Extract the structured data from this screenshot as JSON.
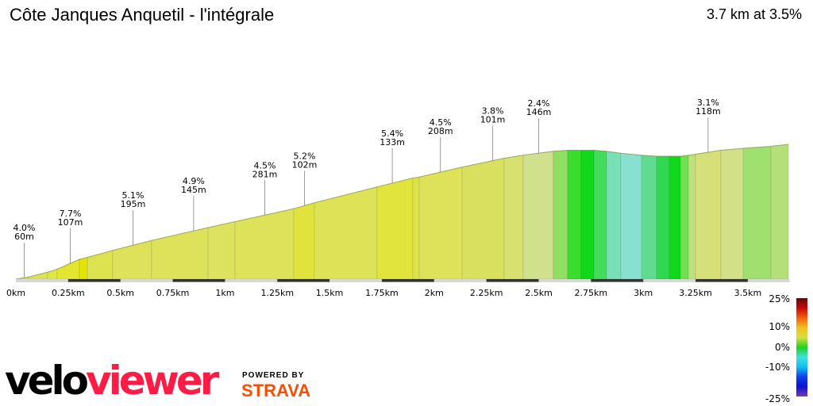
{
  "header": {
    "title": "Côte Janques Anquetil - l'intégrale",
    "summary": "3.7 km at 3.5%"
  },
  "logo": {
    "velo": "velo",
    "viewer": "viewer",
    "powered_by": "POWERED BY",
    "strava": "STRAVA"
  },
  "chart_data": {
    "type": "area",
    "title": "",
    "xlabel": "",
    "ylabel": "",
    "xlim": [
      0,
      3.7
    ],
    "x_unit": "km",
    "grid": false,
    "profile": {
      "km": [
        0,
        0.057,
        0.152,
        0.197,
        0.304,
        0.342,
        0.463,
        0.649,
        0.919,
        1.048,
        1.329,
        1.427,
        1.727,
        1.898,
        1.929,
        2.134,
        2.335,
        2.426,
        2.57,
        2.638,
        2.703,
        2.764,
        2.825,
        2.893,
        2.992,
        3.064,
        3.125,
        3.178,
        3.216,
        3.25,
        3.371,
        3.478,
        3.611,
        3.694
      ],
      "elevation_m": [
        0,
        2,
        7,
        10,
        20,
        22,
        29,
        39,
        52,
        58,
        71,
        77,
        93,
        102,
        103,
        113,
        122,
        125,
        129,
        130,
        130,
        130,
        129,
        127,
        125,
        124,
        124,
        124,
        125,
        126,
        130,
        132,
        134,
        136
      ],
      "segment_colors": [
        "#dde25a",
        "#dde258",
        "#e0e64a",
        "#e4e530",
        "#e3e400",
        "#dde24f",
        "#dde25a",
        "#dde25a",
        "#dde260",
        "#dde258",
        "#dfe33c",
        "#dde256",
        "#e0e43c",
        "#dde248",
        "#dde258",
        "#d9e060",
        "#d8e070",
        "#d0e08c",
        "#8fe062",
        "#3cdc2c",
        "#10d81a",
        "#40dc5a",
        "#78e0b4",
        "#88e0d0",
        "#60dc90",
        "#30d850",
        "#10d81a",
        "#70e050",
        "#c0e080",
        "#d6e078",
        "#d2e088",
        "#a0e070",
        "#b4e07a"
      ]
    },
    "annotations": [
      {
        "km": 0.04,
        "grade": "4.0%",
        "length": "60m"
      },
      {
        "km": 0.26,
        "grade": "7.7%",
        "length": "107m"
      },
      {
        "km": 0.56,
        "grade": "5.1%",
        "length": "195m"
      },
      {
        "km": 0.85,
        "grade": "4.9%",
        "length": "145m"
      },
      {
        "km": 1.19,
        "grade": "4.5%",
        "length": "281m"
      },
      {
        "km": 1.38,
        "grade": "5.2%",
        "length": "102m"
      },
      {
        "km": 1.8,
        "grade": "5.4%",
        "length": "133m"
      },
      {
        "km": 2.03,
        "grade": "4.5%",
        "length": "208m"
      },
      {
        "km": 2.28,
        "grade": "3.8%",
        "length": "101m"
      },
      {
        "km": 2.5,
        "grade": "2.4%",
        "length": "146m"
      },
      {
        "km": 3.31,
        "grade": "3.1%",
        "length": "118m"
      }
    ],
    "x_ticks": [
      {
        "value": 0,
        "label": "0km"
      },
      {
        "value": 0.25,
        "label": "0.25km"
      },
      {
        "value": 0.5,
        "label": "0.5km"
      },
      {
        "value": 0.75,
        "label": "0.75km"
      },
      {
        "value": 1,
        "label": "1km"
      },
      {
        "value": 1.25,
        "label": "1.25km"
      },
      {
        "value": 1.5,
        "label": "1.5km"
      },
      {
        "value": 1.75,
        "label": "1.75km"
      },
      {
        "value": 2,
        "label": "2km"
      },
      {
        "value": 2.25,
        "label": "2.25km"
      },
      {
        "value": 2.5,
        "label": "2.5km"
      },
      {
        "value": 2.75,
        "label": "2.75km"
      },
      {
        "value": 3,
        "label": "3km"
      },
      {
        "value": 3.25,
        "label": "3.25km"
      },
      {
        "value": 3.5,
        "label": "3.5km"
      }
    ],
    "legend": {
      "type": "gradient-scale",
      "placement": "bottom-right",
      "labels": [
        {
          "value": 25,
          "label": "25%"
        },
        {
          "value": 10,
          "label": "10%"
        },
        {
          "value": 0,
          "label": "0%"
        },
        {
          "value": -10,
          "label": "-10%"
        },
        {
          "value": -25,
          "label": "-25%"
        }
      ],
      "colors": [
        "#5a0a0a",
        "#c80a0a",
        "#f06010",
        "#f0c020",
        "#d8e040",
        "#20d020",
        "#40e0e0",
        "#10c0f0",
        "#1040f0",
        "#1010d0",
        "#7040b0"
      ]
    }
  }
}
